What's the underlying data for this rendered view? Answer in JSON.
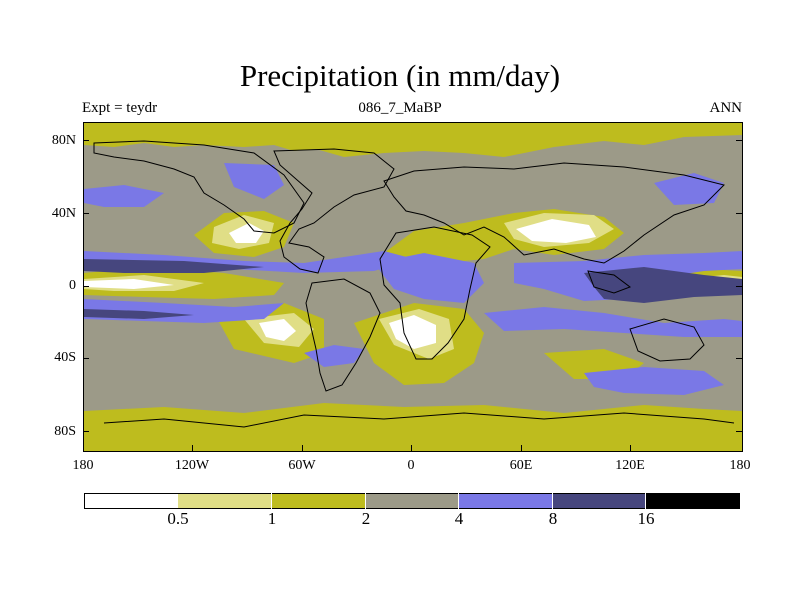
{
  "header": {
    "title": "Precipitation (in mm/day)",
    "experiment": "Expt = teydr",
    "period": "086_7_MaBP",
    "season": "ANN"
  },
  "axes": {
    "y_ticks": [
      "80N",
      "40N",
      "0",
      "40S",
      "80S"
    ],
    "x_ticks": [
      "180",
      "120W",
      "60W",
      "0",
      "60E",
      "120E",
      "180"
    ]
  },
  "legend": {
    "levels": [
      "0.5",
      "1",
      "2",
      "4",
      "8",
      "16"
    ],
    "colors": [
      "#ffffff",
      "#e0de86",
      "#bebc1e",
      "#9c9a88",
      "#7a78e6",
      "#46467e",
      "#000000"
    ]
  }
}
